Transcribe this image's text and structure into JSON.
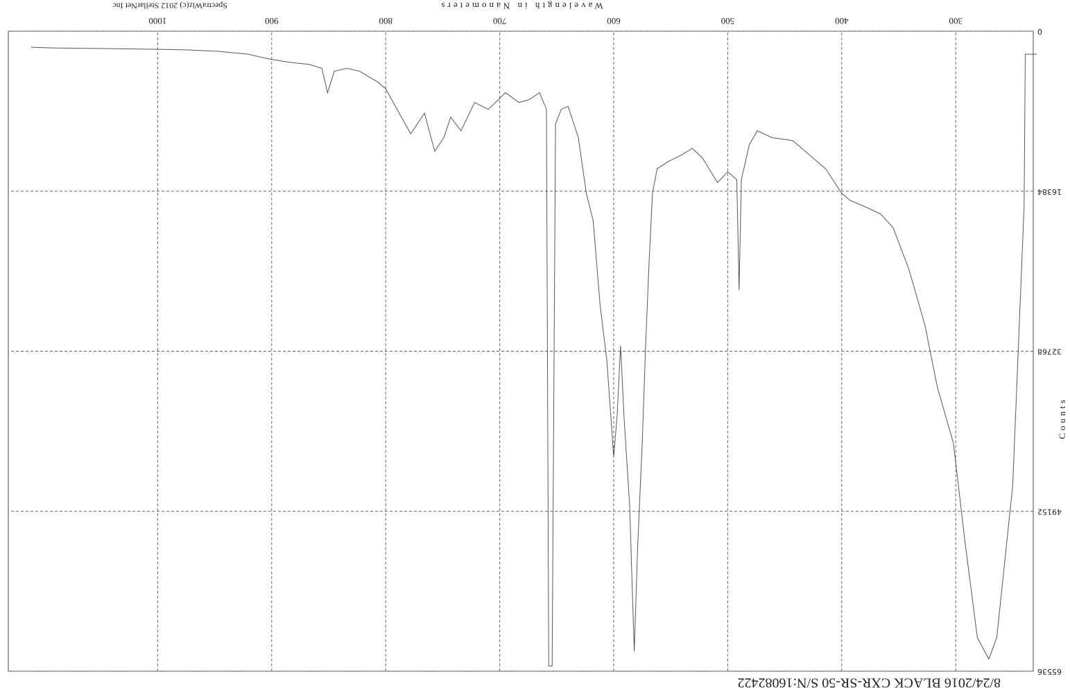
{
  "chart_data": {
    "type": "line",
    "title": "8/24/2016   BLACK CXR-SR-50 S/N:16082422",
    "x_label": "Wavelength in Nanometers",
    "y_label": "Counts",
    "footer": "SpectraWiz(c) 2012 StellarNet Inc",
    "x": [
      229,
      239,
      240,
      250,
      264,
      271,
      281,
      292,
      302,
      316,
      327,
      341,
      355,
      366,
      379,
      393,
      400,
      414,
      428,
      443,
      461,
      474,
      481,
      488,
      490,
      492,
      500,
      509,
      522,
      531,
      541,
      553,
      562,
      566,
      569,
      572,
      575,
      579,
      582,
      586,
      591,
      594,
      597,
      600,
      606,
      612,
      618,
      624,
      631,
      640,
      646,
      651,
      654,
      657,
      659,
      665,
      674,
      683,
      695,
      701,
      710,
      722,
      734,
      743,
      749,
      757,
      766,
      778,
      790,
      800,
      807,
      823,
      834,
      845,
      851,
      856,
      867,
      883,
      900,
      921,
      947,
      973,
      1000,
      1041,
      1093,
      1111
    ],
    "series": [
      {
        "color": "#555555",
        "values": [
          2350,
          2350,
          18000,
          46500,
          62100,
          64300,
          62100,
          52200,
          42200,
          36500,
          30100,
          24400,
          20100,
          18700,
          18000,
          17300,
          16600,
          14100,
          12700,
          11200,
          10900,
          10200,
          11600,
          15200,
          26500,
          15200,
          14400,
          15500,
          13000,
          12000,
          12700,
          13400,
          14100,
          16600,
          23700,
          32200,
          42200,
          52900,
          63500,
          48600,
          39400,
          32200,
          39400,
          43600,
          33700,
          28000,
          19400,
          16600,
          10900,
          7700,
          8000,
          9500,
          65000,
          65000,
          8000,
          6300,
          7000,
          7300,
          6300,
          7000,
          8000,
          7300,
          10200,
          8800,
          10900,
          12300,
          8400,
          10500,
          8000,
          5900,
          5200,
          4100,
          3800,
          4100,
          6300,
          3800,
          3400,
          3200,
          2900,
          2350,
          2060,
          1920,
          1850,
          1780,
          1710,
          1640
        ]
      }
    ],
    "xlim": [
      232,
      1131
    ],
    "xticks": [
      300,
      400,
      500,
      600,
      700,
      800,
      900,
      1000
    ],
    "ylim": [
      0,
      65536
    ],
    "yticks": [
      0,
      16384,
      32768,
      49152,
      65536
    ],
    "grid": true,
    "rotation": 180
  }
}
